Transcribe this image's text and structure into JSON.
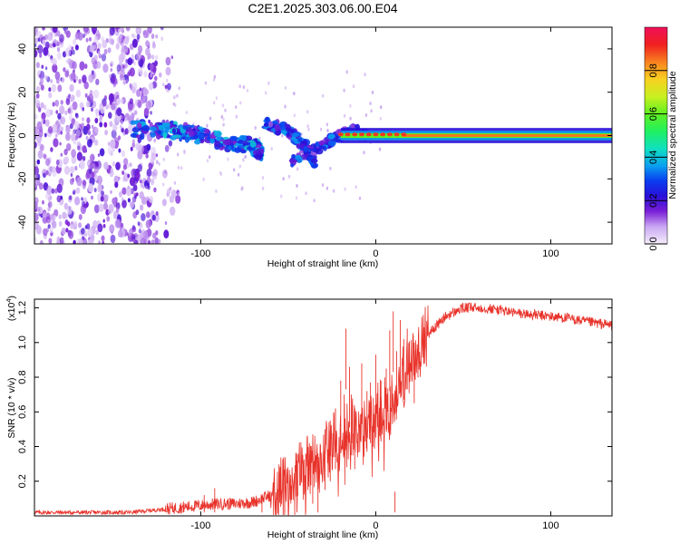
{
  "title": "C2E1.2025.303.06.00.E04",
  "chart_data": [
    {
      "type": "heatmap",
      "name": "spectrogram",
      "xlabel": "Height of straight line (km)",
      "ylabel": "Frequency (Hz)",
      "xlim": [
        -195,
        135
      ],
      "ylim": [
        -50,
        50
      ],
      "xticks": [
        -100,
        0,
        100
      ],
      "yticks": [
        -40,
        -20,
        0,
        20,
        40
      ],
      "colorbar": {
        "label": "Normalized spectral amplitude",
        "range": [
          0,
          1
        ],
        "ticks": [
          0.0,
          0.2,
          0.4,
          0.6,
          0.8
        ],
        "tick_labels": [
          "0.0",
          "0.2",
          "0.4",
          "0.6",
          "0.8"
        ]
      },
      "features": [
        {
          "label": "broadband noise",
          "x_range": [
            -195,
            -125
          ],
          "y_range": [
            -50,
            50
          ],
          "amplitude": 0.15
        },
        {
          "label": "signal track",
          "points": [
            [
              -140,
              3
            ],
            [
              -110,
              2
            ],
            [
              -90,
              -2
            ],
            [
              -70,
              -5
            ],
            [
              -65,
              -8
            ]
          ],
          "amplitude": 0.35
        },
        {
          "label": "signal arc",
          "points": [
            [
              -63,
              6
            ],
            [
              -50,
              2
            ],
            [
              -40,
              -5
            ],
            [
              -35,
              -13
            ]
          ],
          "amplitude": 0.3
        },
        {
          "label": "signal branch",
          "points": [
            [
              -48,
              -12
            ],
            [
              -35,
              -6
            ],
            [
              -25,
              -2
            ],
            [
              -15,
              2
            ],
            [
              -5,
              1
            ]
          ],
          "amplitude": 0.3
        },
        {
          "label": "carrier",
          "x_range": [
            -20,
            135
          ],
          "y": 0,
          "amplitude": 0.85
        }
      ]
    },
    {
      "type": "line",
      "name": "snr",
      "xlabel": "Height of straight line (km)",
      "ylabel": "SNR (10 * v/v)",
      "yscale_label": "(x10",
      "yscale_exp": "4",
      "xlim": [
        -195,
        135
      ],
      "ylim": [
        0,
        1.25
      ],
      "xticks": [
        -100,
        0,
        100
      ],
      "yticks": [
        0.2,
        0.4,
        0.6,
        0.8,
        1.0,
        1.2
      ],
      "ytick_labels": [
        "0.2",
        "0.4",
        "0.6",
        "0.8",
        "1.0",
        "1.2"
      ],
      "color": "#e8322a",
      "series": [
        {
          "name": "SNR",
          "x": [
            -195,
            -160,
            -140,
            -120,
            -100,
            -90,
            -80,
            -70,
            -60,
            -50,
            -45,
            -40,
            -35,
            -30,
            -25,
            -20,
            -15,
            -10,
            -5,
            0,
            5,
            10,
            15,
            20,
            25,
            30,
            40,
            50,
            60,
            70,
            80,
            90,
            100,
            110,
            120,
            135
          ],
          "y": [
            0.02,
            0.02,
            0.02,
            0.04,
            0.06,
            0.07,
            0.07,
            0.08,
            0.12,
            0.18,
            0.22,
            0.28,
            0.32,
            0.36,
            0.42,
            0.45,
            0.5,
            0.55,
            0.55,
            0.58,
            0.62,
            0.68,
            0.78,
            0.9,
            0.98,
            1.05,
            1.15,
            1.2,
            1.2,
            1.19,
            1.17,
            1.16,
            1.15,
            1.14,
            1.12,
            1.1
          ]
        }
      ],
      "spikes": [
        [
          -120,
          0.06
        ],
        [
          -110,
          0.07
        ],
        [
          -98,
          0.12
        ],
        [
          -92,
          0.16
        ],
        [
          -65,
          0.09
        ],
        [
          -52,
          0.24
        ],
        [
          -45,
          0.32
        ],
        [
          -40,
          0.36
        ],
        [
          -36,
          0.42
        ],
        [
          -33,
          0.36
        ],
        [
          -29,
          0.5
        ],
        [
          -26,
          0.55
        ],
        [
          -23,
          0.62
        ],
        [
          -20,
          0.78
        ],
        [
          -18,
          0.7
        ],
        [
          -17,
          1.08
        ],
        [
          -15,
          0.86
        ],
        [
          -14,
          0.7
        ],
        [
          -12,
          0.62
        ],
        [
          -8,
          0.88
        ],
        [
          -5,
          0.72
        ],
        [
          -3,
          0.77
        ],
        [
          0,
          0.93
        ],
        [
          3,
          0.78
        ],
        [
          6,
          0.85
        ],
        [
          8,
          1.07
        ],
        [
          10,
          1.18
        ],
        [
          11,
          0.14
        ],
        [
          12,
          0.95
        ],
        [
          14,
          1.13
        ],
        [
          16,
          1.02
        ],
        [
          18,
          1.08
        ],
        [
          22,
          1.0
        ]
      ]
    }
  ]
}
